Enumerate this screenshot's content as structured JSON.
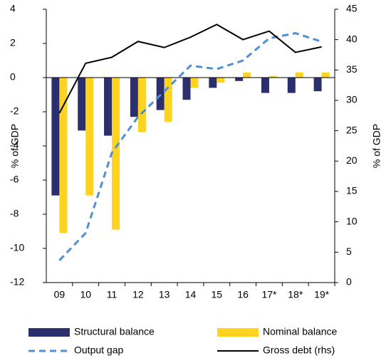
{
  "chart_data": {
    "type": "bar",
    "categories": [
      "09",
      "10",
      "11",
      "12",
      "13",
      "14",
      "15",
      "16",
      "17*",
      "18*",
      "19*"
    ],
    "series": [
      {
        "name": "Structural balance",
        "type": "bar",
        "color": "#2b2f6e",
        "values": [
          -6.9,
          -3.1,
          -3.4,
          -2.3,
          -1.9,
          -1.3,
          -0.6,
          -0.2,
          -0.9,
          -0.9,
          -0.8
        ]
      },
      {
        "name": "Nominal balance",
        "type": "bar",
        "color": "#ffd320",
        "values": [
          -9.1,
          -6.9,
          -8.9,
          -3.2,
          -2.6,
          -0.6,
          -0.3,
          0.3,
          0.1,
          0.3,
          0.3
        ]
      },
      {
        "name": "Output gap",
        "type": "line",
        "dashed": true,
        "color": "#4f8fd6",
        "values": [
          -10.7,
          -9.1,
          -4.4,
          -2.3,
          -0.8,
          0.7,
          0.5,
          1.0,
          2.3,
          2.6,
          2.1
        ]
      },
      {
        "name": "Gross debt (rhs)",
        "type": "line",
        "axis": "y2",
        "color": "#000000",
        "values": [
          27.9,
          36.1,
          37.1,
          39.7,
          38.7,
          40.4,
          42.5,
          40.0,
          41.4,
          37.9,
          38.8
        ]
      }
    ],
    "ylabel": "% of GDP",
    "y2label": "% of GDP",
    "ylim": [
      -12,
      4
    ],
    "yticks": [
      -12,
      -10,
      -8,
      -6,
      -4,
      -2,
      0,
      2,
      4
    ],
    "y2lim": [
      0,
      45
    ],
    "y2ticks": [
      0,
      5,
      10,
      15,
      20,
      25,
      30,
      35,
      40,
      45
    ],
    "grid": false,
    "legend": "bottom"
  }
}
